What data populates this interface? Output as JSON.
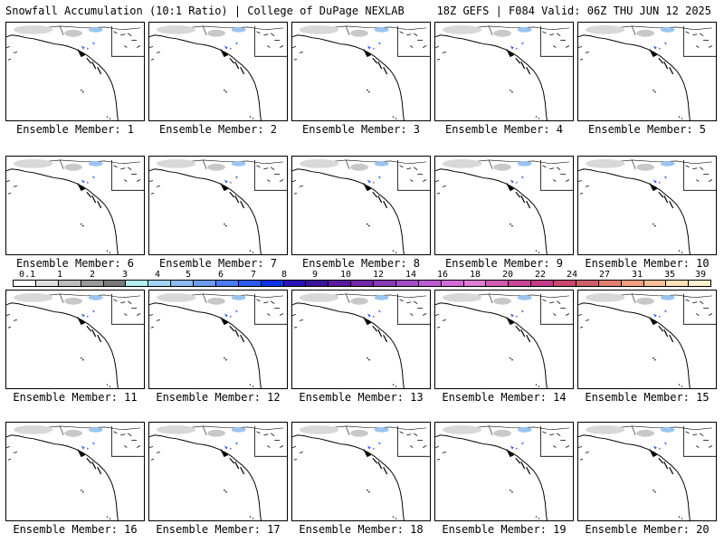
{
  "header": {
    "left": "Snowfall Accumulation (10:1 Ratio) | College of DuPage NEXLAB",
    "right": "18Z GEFS | F084 Valid: 06Z THU JUN 12 2025"
  },
  "members": [
    "Ensemble Member: 1",
    "Ensemble Member: 2",
    "Ensemble Member: 3",
    "Ensemble Member: 4",
    "Ensemble Member: 5",
    "Ensemble Member: 6",
    "Ensemble Member: 7",
    "Ensemble Member: 8",
    "Ensemble Member: 9",
    "Ensemble Member: 10",
    "Ensemble Member: 11",
    "Ensemble Member: 12",
    "Ensemble Member: 13",
    "Ensemble Member: 14",
    "Ensemble Member: 15",
    "Ensemble Member: 16",
    "Ensemble Member: 17",
    "Ensemble Member: 18",
    "Ensemble Member: 19",
    "Ensemble Member: 20"
  ],
  "legend": {
    "labels": [
      "0.1",
      "1",
      "2",
      "3",
      "4",
      "5",
      "6",
      "7",
      "8",
      "9",
      "10",
      "12",
      "14",
      "16",
      "18",
      "20",
      "22",
      "24",
      "27",
      "31",
      "35",
      "39"
    ],
    "colors": [
      "#ffffff",
      "#e0e0e0",
      "#bebebe",
      "#9a9a9a",
      "#7a7a7a",
      "#b4f0f0",
      "#a4d4f4",
      "#8cbcf4",
      "#6c9cf4",
      "#4c7cf4",
      "#2c5cf4",
      "#0c34e8",
      "#2a14b8",
      "#3c1498",
      "#5a1a9e",
      "#7028a8",
      "#8a3cb8",
      "#a44cc8",
      "#bc5cd0",
      "#d46cd8",
      "#e07cd4",
      "#d05cb0",
      "#c8489a",
      "#c03c84",
      "#c84870",
      "#d0606c",
      "#e08070",
      "#f0a080",
      "#f8c098",
      "#fce0b8",
      "#fff0d0"
    ]
  }
}
